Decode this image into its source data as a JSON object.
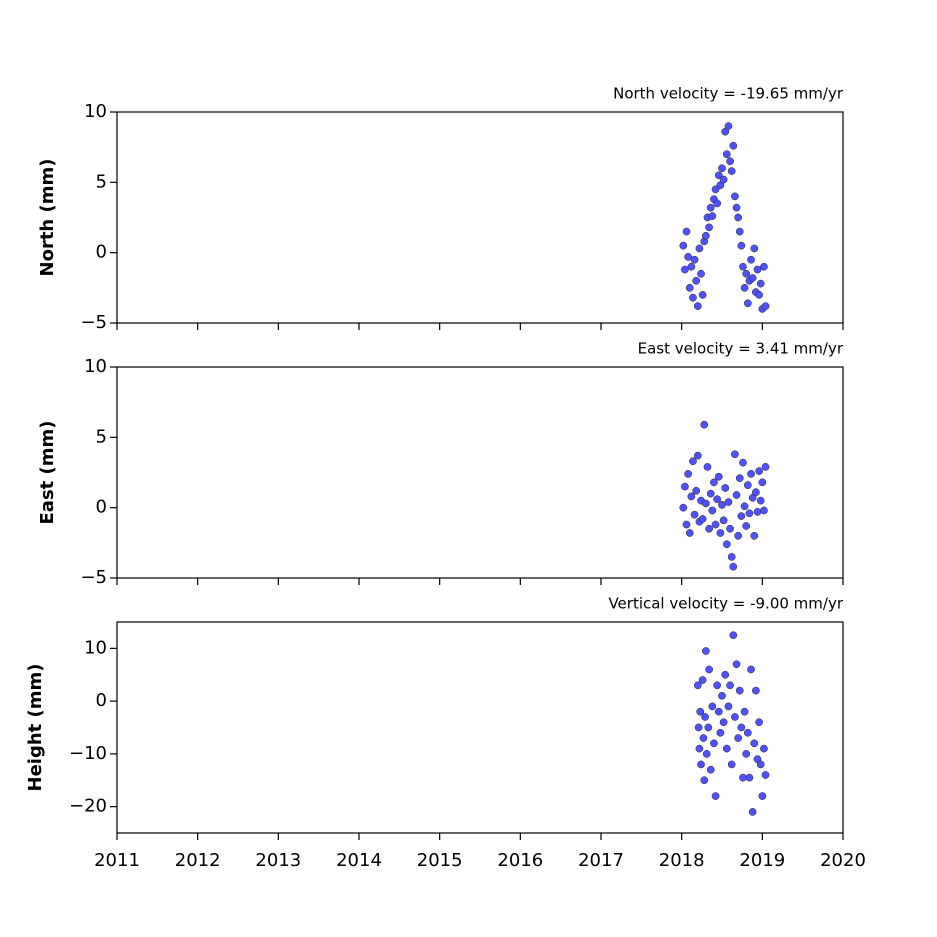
{
  "chart_data": [
    {
      "type": "scatter",
      "annotation": "North velocity = -19.65 mm/yr",
      "ylabel": "North (mm)",
      "xlim": [
        2011,
        2020
      ],
      "xticks": [
        2011,
        2012,
        2013,
        2014,
        2015,
        2016,
        2017,
        2018,
        2019,
        2020
      ],
      "ylim": [
        -5,
        10
      ],
      "yticks": [
        {
          "value": -5,
          "label": "−5"
        },
        0,
        5,
        10
      ],
      "series": [
        {
          "color": "#5050ff",
          "x": [
            2018.02,
            2018.04,
            2018.06,
            2018.08,
            2018.1,
            2018.12,
            2018.14,
            2018.16,
            2018.18,
            2018.2,
            2018.22,
            2018.24,
            2018.26,
            2018.28,
            2018.3,
            2018.32,
            2018.34,
            2018.36,
            2018.38,
            2018.4,
            2018.42,
            2018.44,
            2018.46,
            2018.48,
            2018.5,
            2018.52,
            2018.54,
            2018.56,
            2018.58,
            2018.6,
            2018.62,
            2018.64,
            2018.66,
            2018.68,
            2018.7,
            2018.72,
            2018.74,
            2018.76,
            2018.78,
            2018.8,
            2018.82,
            2018.84,
            2018.86,
            2018.88,
            2018.9,
            2018.92,
            2018.94,
            2018.96,
            2018.98,
            2019.0,
            2019.02,
            2019.04
          ],
          "values": [
            0.5,
            -1.2,
            1.5,
            -0.3,
            -2.5,
            -1.0,
            -3.2,
            -0.5,
            -2.0,
            -3.8,
            0.3,
            -1.5,
            -3.0,
            0.8,
            1.2,
            2.5,
            1.8,
            3.2,
            2.6,
            3.8,
            4.5,
            3.5,
            5.5,
            4.8,
            6.0,
            5.2,
            8.6,
            7.0,
            9.0,
            6.5,
            5.8,
            7.6,
            4.0,
            3.2,
            2.5,
            1.5,
            0.5,
            -1.0,
            -2.5,
            -1.5,
            -3.6,
            -2.0,
            -0.5,
            -1.8,
            0.3,
            -2.8,
            -1.2,
            -3.0,
            -2.2,
            -4.0,
            -1.0,
            -3.8
          ]
        }
      ]
    },
    {
      "type": "scatter",
      "annotation": "East velocity = 3.41 mm/yr",
      "ylabel": "East (mm)",
      "xlim": [
        2011,
        2020
      ],
      "xticks": [
        2011,
        2012,
        2013,
        2014,
        2015,
        2016,
        2017,
        2018,
        2019,
        2020
      ],
      "ylim": [
        -5,
        10
      ],
      "yticks": [
        {
          "value": -5,
          "label": "−5"
        },
        0,
        5,
        10
      ],
      "series": [
        {
          "color": "#5050ff",
          "x": [
            2018.02,
            2018.04,
            2018.06,
            2018.08,
            2018.1,
            2018.12,
            2018.14,
            2018.16,
            2018.18,
            2018.2,
            2018.22,
            2018.24,
            2018.26,
            2018.28,
            2018.3,
            2018.32,
            2018.34,
            2018.36,
            2018.38,
            2018.4,
            2018.42,
            2018.44,
            2018.46,
            2018.48,
            2018.5,
            2018.52,
            2018.54,
            2018.56,
            2018.58,
            2018.6,
            2018.62,
            2018.64,
            2018.66,
            2018.68,
            2018.7,
            2018.72,
            2018.74,
            2018.76,
            2018.78,
            2018.8,
            2018.82,
            2018.84,
            2018.86,
            2018.88,
            2018.9,
            2018.92,
            2018.94,
            2018.96,
            2018.98,
            2019.0,
            2019.02,
            2019.04
          ],
          "values": [
            0.0,
            1.5,
            -1.2,
            2.4,
            -1.8,
            0.8,
            3.3,
            -0.5,
            1.2,
            3.7,
            -1.0,
            0.5,
            -0.8,
            5.9,
            0.3,
            2.9,
            -1.5,
            1.0,
            -0.2,
            1.8,
            -1.2,
            0.6,
            2.2,
            -1.8,
            0.2,
            -0.9,
            1.4,
            -2.6,
            0.4,
            -1.5,
            -3.5,
            -4.2,
            3.8,
            0.9,
            -2.0,
            2.1,
            -0.6,
            3.2,
            0.1,
            -1.3,
            1.6,
            -0.4,
            2.4,
            0.7,
            -2.0,
            1.1,
            -0.3,
            2.6,
            0.5,
            1.8,
            -0.2,
            2.9
          ]
        }
      ]
    },
    {
      "type": "scatter",
      "annotation": "Vertical velocity = -9.00 mm/yr",
      "ylabel": "Height (mm)",
      "xlim": [
        2011,
        2020
      ],
      "xticks": [
        2011,
        2012,
        2013,
        2014,
        2015,
        2016,
        2017,
        2018,
        2019,
        2020
      ],
      "ylim": [
        -25,
        15
      ],
      "yticks": [
        {
          "value": -20,
          "label": "−20"
        },
        {
          "value": -10,
          "label": "−10"
        },
        0,
        10
      ],
      "series": [
        {
          "color": "#5050ff",
          "x": [
            2018.2,
            2018.21,
            2018.22,
            2018.23,
            2018.24,
            2018.26,
            2018.27,
            2018.28,
            2018.29,
            2018.3,
            2018.31,
            2018.33,
            2018.34,
            2018.36,
            2018.38,
            2018.4,
            2018.42,
            2018.44,
            2018.46,
            2018.48,
            2018.5,
            2018.52,
            2018.54,
            2018.56,
            2018.58,
            2018.6,
            2018.62,
            2018.64,
            2018.66,
            2018.68,
            2018.7,
            2018.72,
            2018.74,
            2018.76,
            2018.78,
            2018.8,
            2018.82,
            2018.84,
            2018.86,
            2018.88,
            2018.9,
            2018.92,
            2018.94,
            2018.96,
            2018.98,
            2019.0,
            2019.02,
            2019.04
          ],
          "values": [
            3,
            -5,
            -9,
            -2,
            -12,
            4,
            -7,
            -15,
            -3,
            9.5,
            -10,
            -5,
            6,
            -13,
            -1,
            -8,
            -18,
            3,
            -2,
            -6,
            1,
            -4,
            5,
            -9,
            -1,
            3,
            -12,
            12.5,
            -3,
            7,
            -7,
            2,
            -5,
            -14.5,
            -2,
            -10,
            -6,
            -14.5,
            6,
            -21,
            -8,
            2,
            -11,
            -4,
            -12,
            -18,
            -9,
            -14
          ]
        }
      ]
    }
  ]
}
